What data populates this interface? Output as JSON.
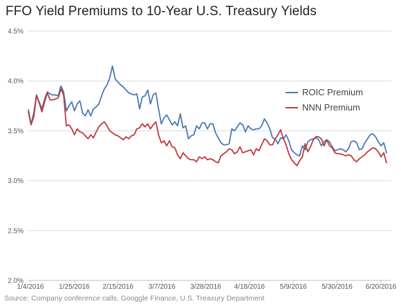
{
  "chart_data": {
    "type": "line",
    "title": "FFO Yield Premiums to 10-Year U.S. Treasury Yields",
    "source": "Source: Company conference calls, Googgle Finance, U.S. Treasury Department",
    "xlabel": "",
    "ylabel": "",
    "x_tick_labels": [
      "1/4/2016",
      "1/25/2016",
      "2/15/2016",
      "3/7/2016",
      "3/28/2016",
      "4/18/2016",
      "5/9/2016",
      "5/30/2016",
      "6/20/2016"
    ],
    "y_tick_labels": [
      "2.0%",
      "2.5%",
      "3.0%",
      "3.5%",
      "4.0%",
      "4.5%"
    ],
    "ylim": [
      0.02,
      0.045
    ],
    "grid": true,
    "legend_position": "right",
    "series": [
      {
        "name": "ROIC Premium",
        "color": "#4a78b5",
        "values": [
          0.0371,
          0.0357,
          0.0368,
          0.0386,
          0.0379,
          0.0372,
          0.0382,
          0.0389,
          0.0387,
          0.0386,
          0.0386,
          0.0385,
          0.0395,
          0.0389,
          0.037,
          0.0375,
          0.0379,
          0.037,
          0.0377,
          0.038,
          0.0368,
          0.0365,
          0.0371,
          0.0365,
          0.0372,
          0.0374,
          0.0377,
          0.0385,
          0.0392,
          0.0396,
          0.0403,
          0.0415,
          0.0402,
          0.0399,
          0.0396,
          0.0394,
          0.0391,
          0.0388,
          0.0387,
          0.0386,
          0.0387,
          0.0372,
          0.0384,
          0.0385,
          0.0391,
          0.0377,
          0.0386,
          0.0388,
          0.0372,
          0.0357,
          0.0363,
          0.0366,
          0.0361,
          0.0356,
          0.0359,
          0.0355,
          0.0367,
          0.0353,
          0.0355,
          0.0342,
          0.0345,
          0.0346,
          0.0355,
          0.0352,
          0.0358,
          0.0358,
          0.0352,
          0.0357,
          0.0357,
          0.0348,
          0.0343,
          0.0338,
          0.0336,
          0.0336,
          0.0337,
          0.0352,
          0.035,
          0.0354,
          0.0358,
          0.0356,
          0.0349,
          0.0355,
          0.0352,
          0.0351,
          0.0352,
          0.0352,
          0.0355,
          0.0362,
          0.0358,
          0.0352,
          0.0343,
          0.0342,
          0.0337,
          0.0343,
          0.0342,
          0.0346,
          0.034,
          0.0331,
          0.0328,
          0.0326,
          0.0325,
          0.0335,
          0.0331,
          0.0339,
          0.0341,
          0.0342,
          0.0343,
          0.0341,
          0.0335,
          0.0339,
          0.0341,
          0.0339,
          0.0334,
          0.033,
          0.0331,
          0.0332,
          0.0331,
          0.0329,
          0.0332,
          0.0339,
          0.034,
          0.0338,
          0.0331,
          0.0332,
          0.0338,
          0.0342,
          0.0346,
          0.0347,
          0.0344,
          0.0339,
          0.0335,
          0.0338,
          0.0328
        ]
      },
      {
        "name": "NNN Premium",
        "color": "#c0393b",
        "values": [
          0.0369,
          0.0356,
          0.0364,
          0.0385,
          0.0378,
          0.0369,
          0.0379,
          0.0388,
          0.0381,
          0.0381,
          0.0382,
          0.0383,
          0.0392,
          0.0386,
          0.0355,
          0.0356,
          0.0352,
          0.0346,
          0.0352,
          0.0349,
          0.0348,
          0.0345,
          0.0342,
          0.0346,
          0.0343,
          0.0349,
          0.0354,
          0.0357,
          0.0359,
          0.0355,
          0.035,
          0.0348,
          0.0346,
          0.0345,
          0.0343,
          0.0341,
          0.0344,
          0.0342,
          0.0345,
          0.0346,
          0.0352,
          0.0353,
          0.0357,
          0.0354,
          0.0357,
          0.0352,
          0.0356,
          0.0359,
          0.0346,
          0.0338,
          0.034,
          0.0335,
          0.034,
          0.0334,
          0.0333,
          0.0326,
          0.0322,
          0.0328,
          0.0325,
          0.0322,
          0.0321,
          0.0321,
          0.0319,
          0.0324,
          0.0322,
          0.0324,
          0.0321,
          0.0322,
          0.0321,
          0.0319,
          0.0318,
          0.0325,
          0.0327,
          0.0329,
          0.0332,
          0.0331,
          0.0327,
          0.0329,
          0.0334,
          0.0328,
          0.0329,
          0.033,
          0.0331,
          0.0326,
          0.0332,
          0.033,
          0.0336,
          0.0342,
          0.034,
          0.0336,
          0.0336,
          0.0342,
          0.0346,
          0.0351,
          0.0342,
          0.0336,
          0.0327,
          0.0321,
          0.0318,
          0.0315,
          0.032,
          0.0324,
          0.0337,
          0.0329,
          0.0334,
          0.0341,
          0.0344,
          0.0344,
          0.0342,
          0.0335,
          0.0341,
          0.0335,
          0.0333,
          0.0328,
          0.0327,
          0.0327,
          0.0326,
          0.0325,
          0.0326,
          0.0325,
          0.0321,
          0.0319,
          0.0322,
          0.0324,
          0.0326,
          0.0329,
          0.0331,
          0.0333,
          0.0332,
          0.0329,
          0.0324,
          0.0328,
          0.0318
        ]
      }
    ]
  }
}
